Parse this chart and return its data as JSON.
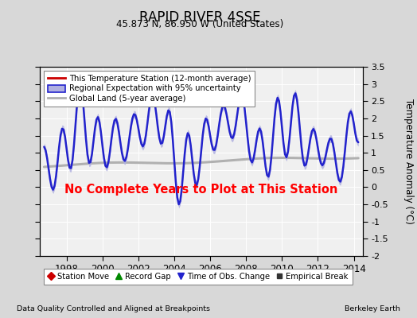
{
  "title": "RAPID RIVER 4SSE",
  "subtitle": "45.873 N, 86.950 W (United States)",
  "ylabel": "Temperature Anomaly (°C)",
  "footer_left": "Data Quality Controlled and Aligned at Breakpoints",
  "footer_right": "Berkeley Earth",
  "no_data_text": "No Complete Years to Plot at This Station",
  "xlim": [
    1996.5,
    2014.5
  ],
  "ylim": [
    -2.0,
    3.5
  ],
  "yticks": [
    -2,
    -1.5,
    -1,
    -0.5,
    0,
    0.5,
    1,
    1.5,
    2,
    2.5,
    3,
    3.5
  ],
  "xticks": [
    1998,
    2000,
    2002,
    2004,
    2006,
    2008,
    2010,
    2012,
    2014
  ],
  "bg_color": "#d8d8d8",
  "plot_bg_color": "#f0f0f0",
  "regional_color": "#2222cc",
  "regional_fill_color": "#b0b0e0",
  "global_land_color": "#b0b0b0",
  "station_color": "#cc0000",
  "legend1_items": [
    {
      "label": "This Temperature Station (12-month average)",
      "color": "#cc0000",
      "lw": 2.0
    },
    {
      "label": "Regional Expectation with 95% uncertainty",
      "color": "#2222cc",
      "fill": "#b0b0e0",
      "lw": 2.0
    },
    {
      "label": "Global Land (5-year average)",
      "color": "#b0b0b0",
      "lw": 2.0
    }
  ],
  "legend2_items": [
    {
      "label": "Station Move",
      "marker": "D",
      "color": "#cc0000"
    },
    {
      "label": "Record Gap",
      "marker": "^",
      "color": "#008800"
    },
    {
      "label": "Time of Obs. Change",
      "marker": "v",
      "color": "#2222cc"
    },
    {
      "label": "Empirical Break",
      "marker": "s",
      "color": "#333333"
    }
  ]
}
